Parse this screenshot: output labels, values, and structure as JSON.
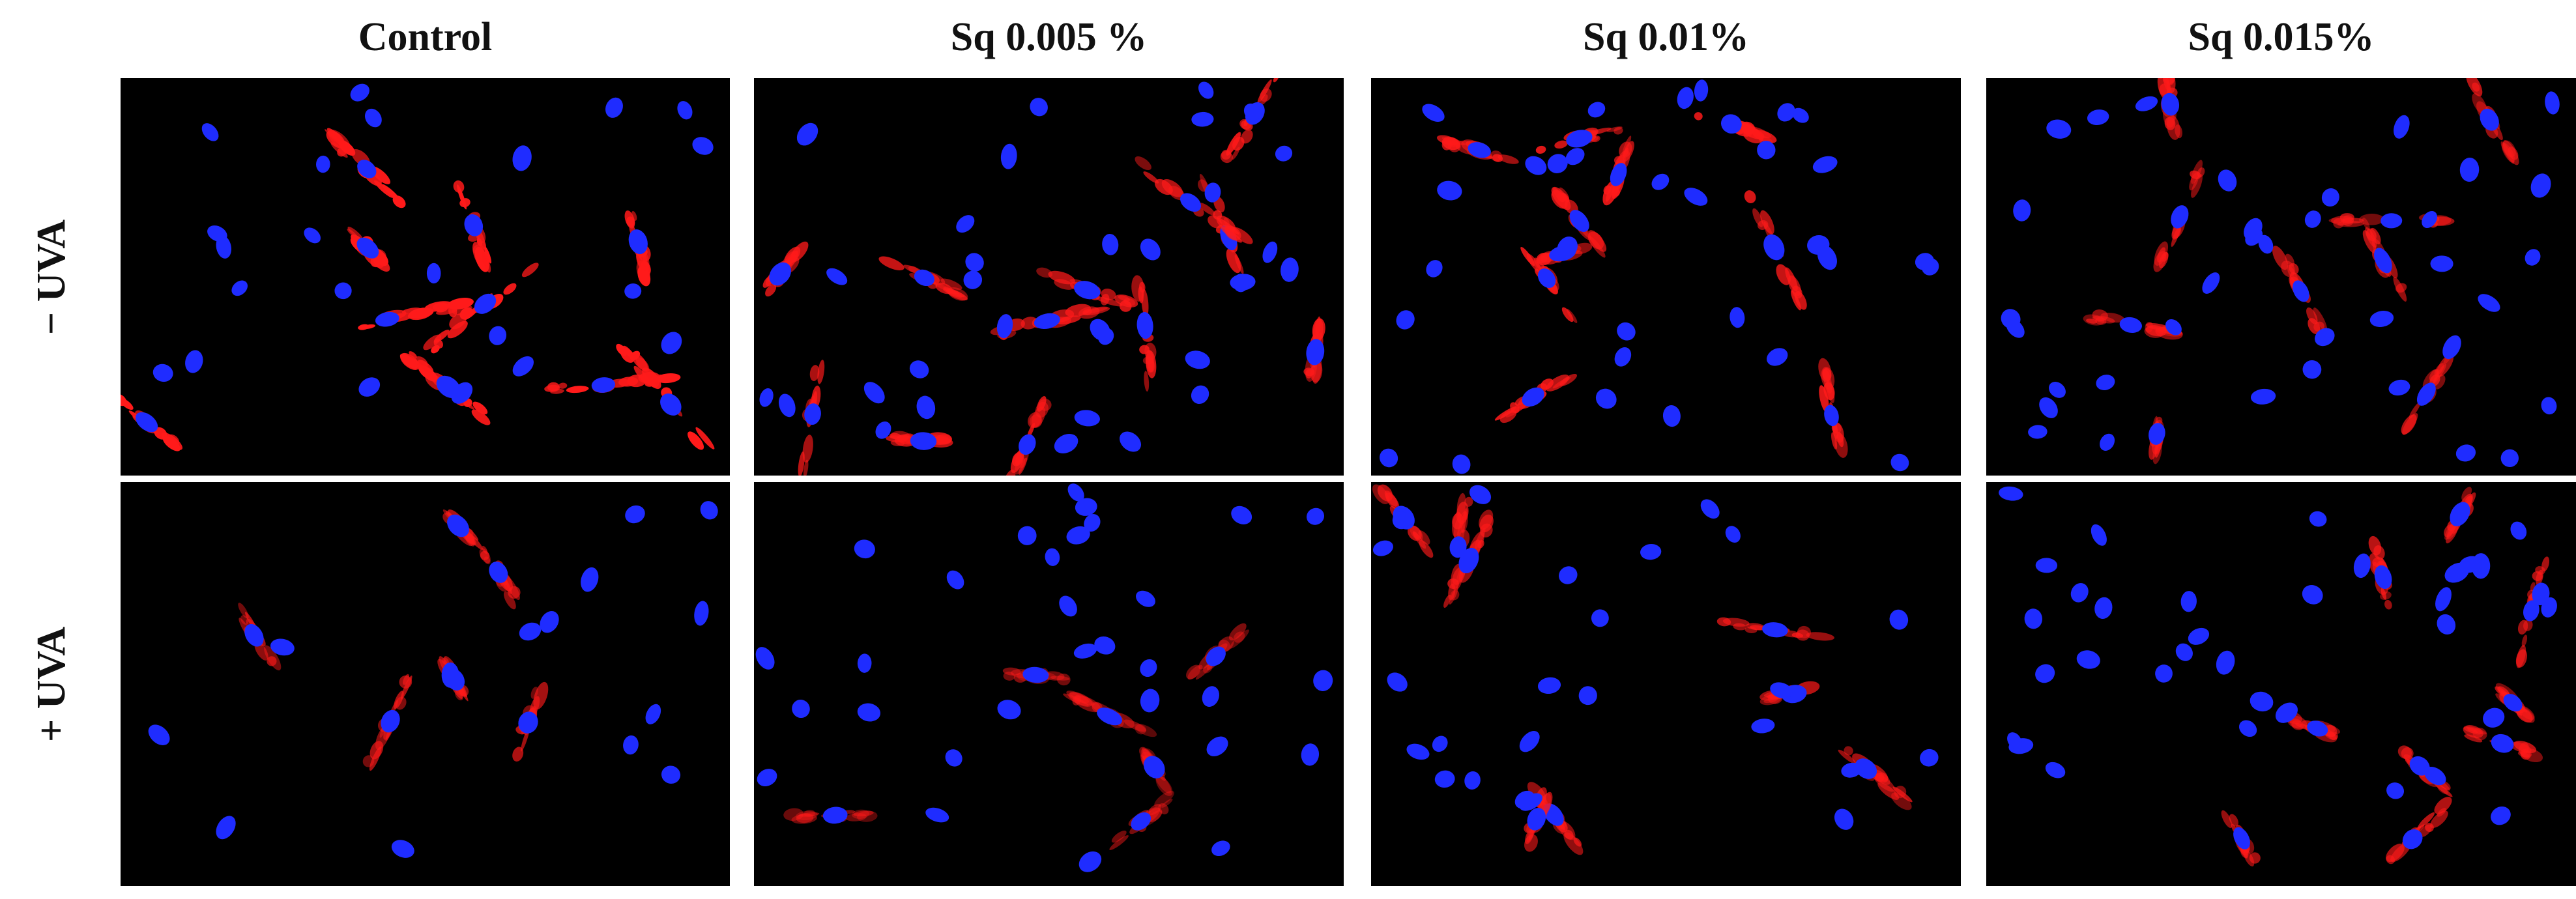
{
  "columns": [
    "Control",
    "Sq 0.005 %",
    "Sq 0.01%",
    "Sq 0.015%"
  ],
  "rows": [
    "− UVA",
    "+ UVA"
  ],
  "colors": {
    "background": "#000000",
    "nucleus": "#1f2cff",
    "stain": "#ff1a1a"
  }
}
